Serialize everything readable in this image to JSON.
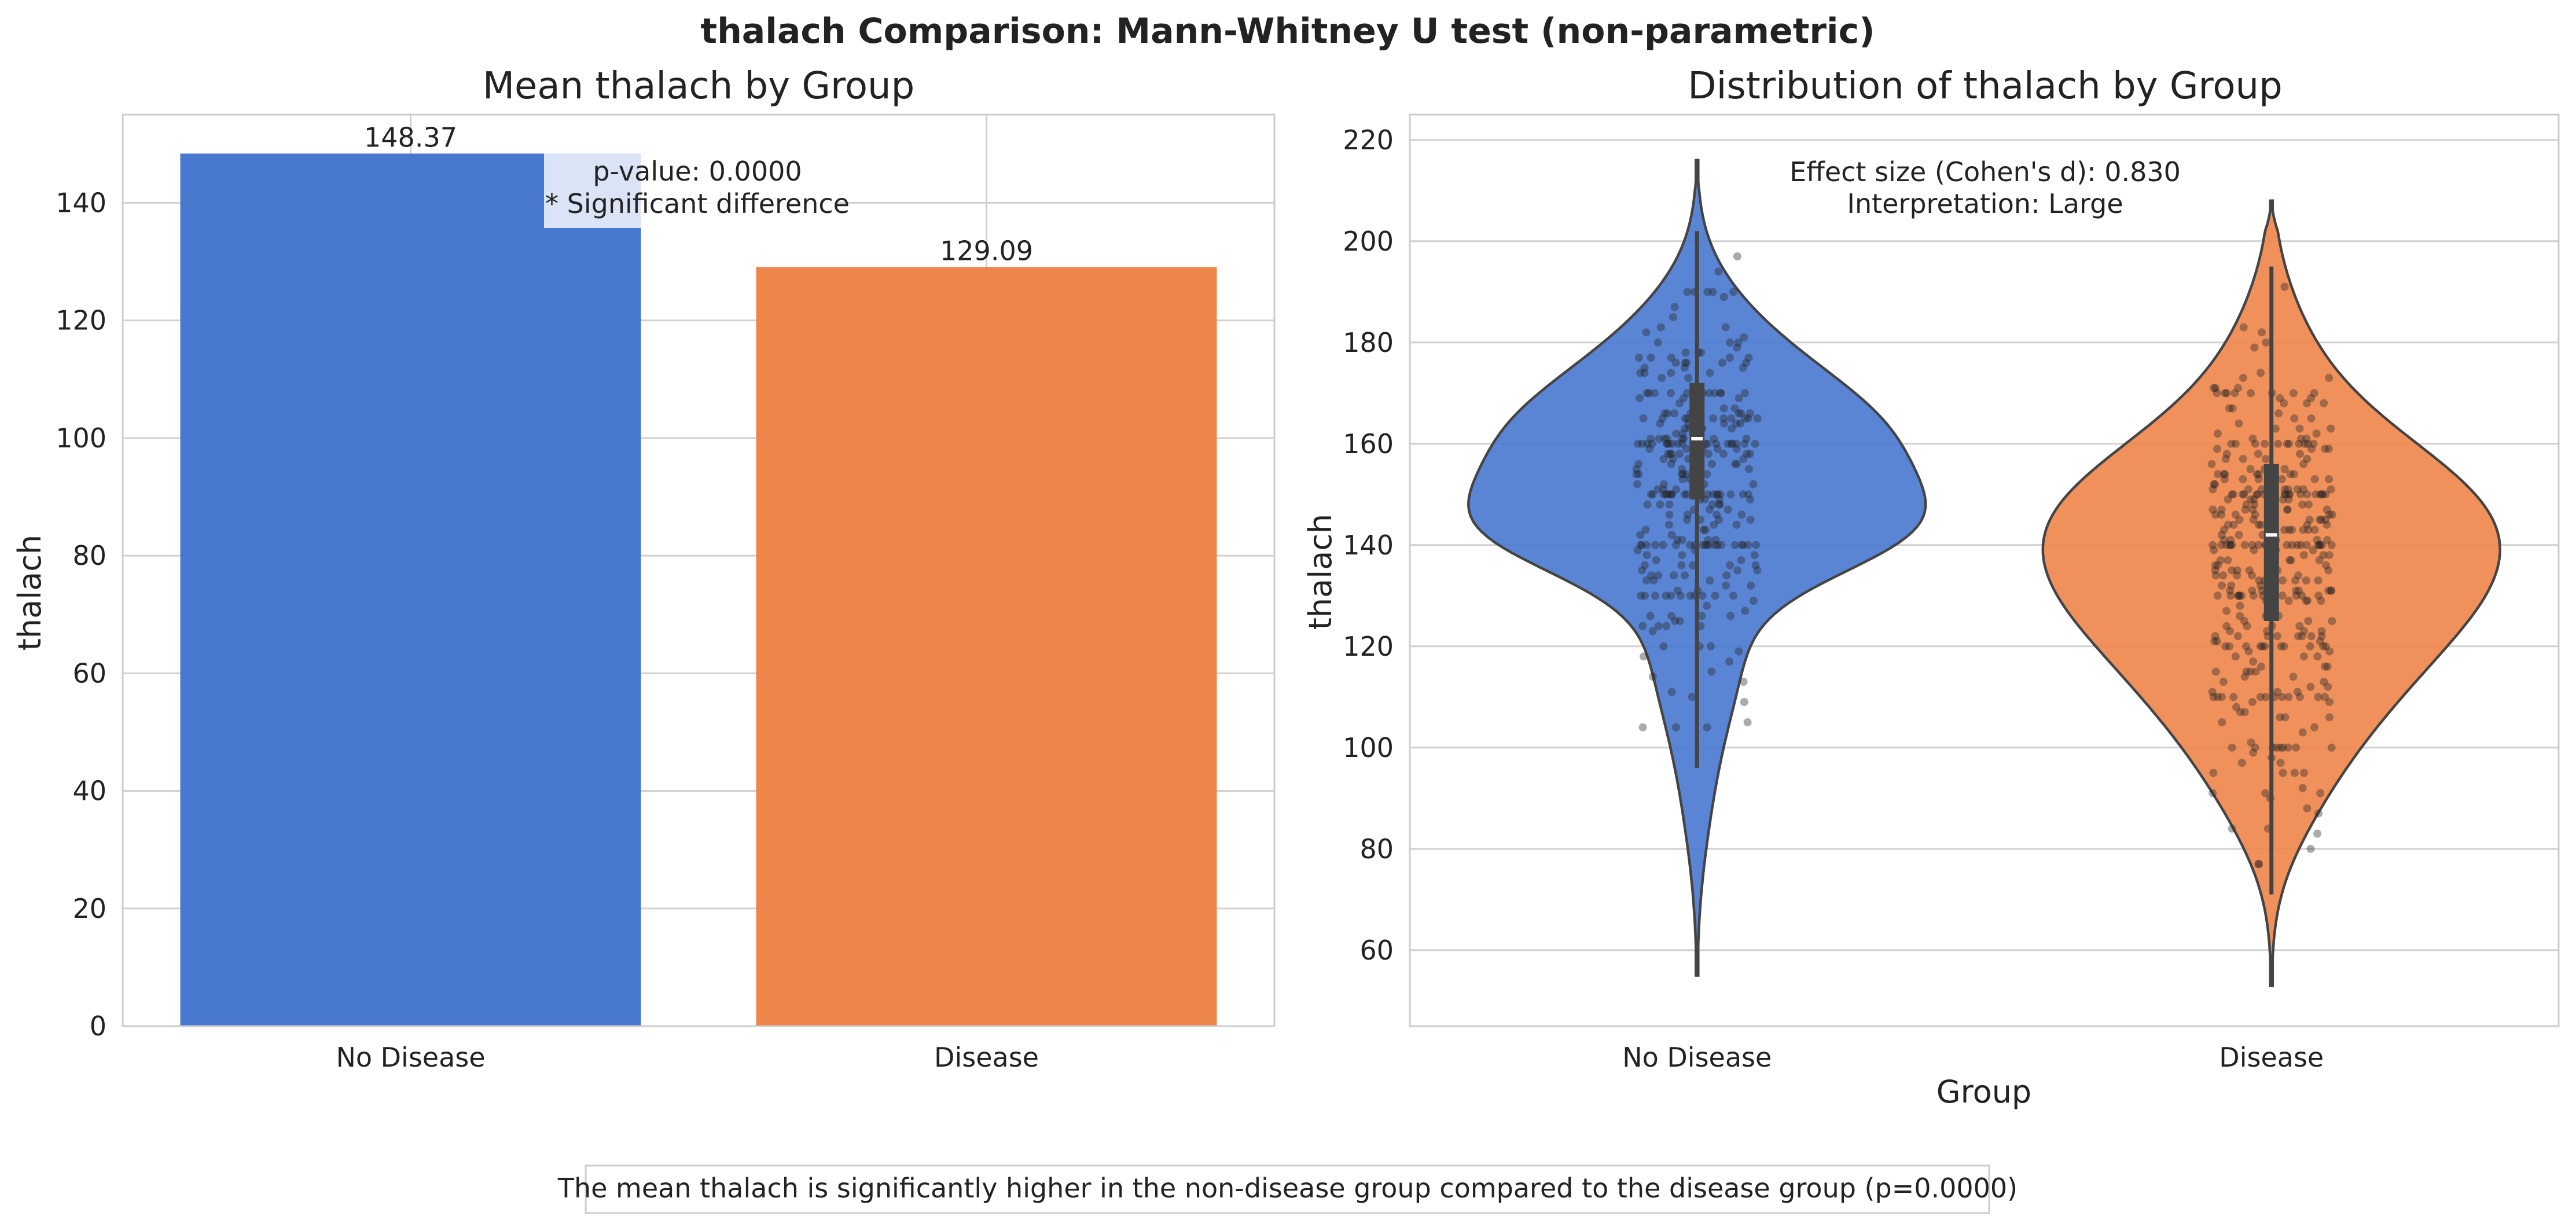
{
  "suptitle": "thalach Comparison: Mann-Whitney U test (non-parametric)",
  "footnote": "The mean thalach is significantly higher in the non-disease group compared to the disease group (p=0.0000)",
  "colors": {
    "no_disease": "#4878cf",
    "disease": "#ee854a",
    "grid": "#d0d0d0",
    "spine": "#cccccc"
  },
  "chart_data": [
    {
      "type": "bar",
      "title": "Mean thalach by Group",
      "xlabel": "",
      "ylabel": "thalach",
      "categories": [
        "No Disease",
        "Disease"
      ],
      "values": [
        148.37,
        129.09
      ],
      "value_labels": [
        "148.37",
        "129.09"
      ],
      "ylim": [
        0,
        155
      ],
      "yticks": [
        0,
        20,
        40,
        60,
        80,
        100,
        120,
        140
      ],
      "grid": true,
      "annotation": {
        "line1": "p-value: 0.0000",
        "line2": "* Significant difference"
      }
    },
    {
      "type": "violin",
      "title": "Distribution of thalach by Group",
      "xlabel": "Group",
      "ylabel": "thalach",
      "categories": [
        "No Disease",
        "Disease"
      ],
      "ylim": [
        45,
        225
      ],
      "yticks": [
        60,
        80,
        100,
        120,
        140,
        160,
        180,
        200,
        220
      ],
      "grid": true,
      "annotation": {
        "line1": "Effect size (Cohen's d): 0.830",
        "line2": "Interpretation: Large"
      },
      "groups": [
        {
          "name": "No Disease",
          "min": 96,
          "q1": 149,
          "median": 161,
          "q3": 172,
          "max": 202,
          "kde_min": 55,
          "kde_max": 216,
          "mode": 161
        },
        {
          "name": "Disease",
          "min": 71,
          "q1": 125,
          "median": 142,
          "q3": 156,
          "max": 195,
          "kde_min": 53,
          "kde_max": 208,
          "mode": 140
        }
      ]
    }
  ]
}
